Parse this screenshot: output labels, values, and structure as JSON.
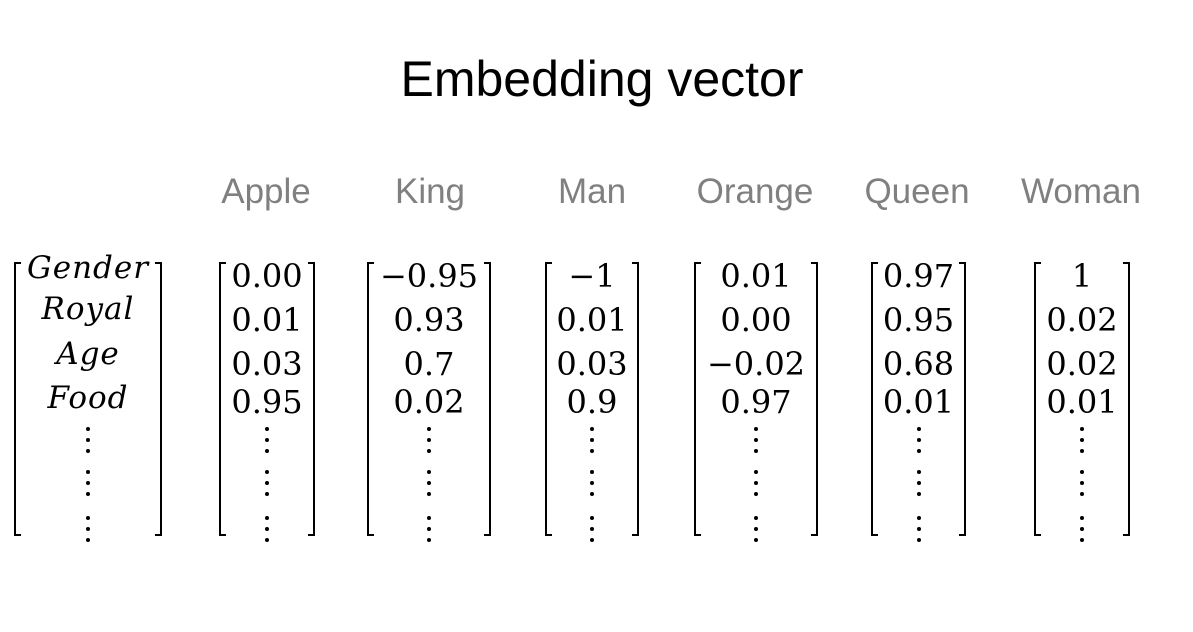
{
  "title": "Embedding vector",
  "features": [
    "Gender",
    "Royal",
    "Age",
    "Food"
  ],
  "words": [
    {
      "label": "Apple",
      "values": [
        "0.00",
        "0.01",
        "0.03",
        "0.95"
      ]
    },
    {
      "label": "King",
      "values": [
        "−0.95",
        "0.93",
        "0.7",
        "0.02"
      ]
    },
    {
      "label": "Man",
      "values": [
        "−1",
        "0.01",
        "0.03",
        "0.9"
      ]
    },
    {
      "label": "Orange",
      "values": [
        "0.01",
        "0.00",
        "−0.02",
        "0.97"
      ]
    },
    {
      "label": "Queen",
      "values": [
        "0.97",
        "0.95",
        "0.68",
        "0.01"
      ]
    },
    {
      "label": "Woman",
      "values": [
        "1",
        "0.02",
        "0.02",
        "0.01"
      ]
    }
  ]
}
